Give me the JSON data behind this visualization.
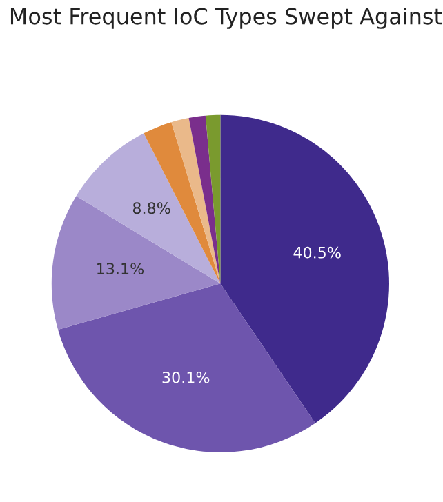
{
  "chart_data": {
    "type": "pie",
    "title": "Most Frequent IoC Types Swept Against",
    "categories": [
      null,
      null,
      null,
      null,
      null,
      null,
      null,
      null
    ],
    "values": [
      40.5,
      30.1,
      13.1,
      8.8,
      2.8,
      1.7,
      1.6,
      1.4
    ],
    "value_labels": [
      "40.5%",
      "30.1%",
      "13.1%",
      "8.8%",
      null,
      null,
      null,
      null
    ],
    "colors": [
      "#3f2a8c",
      "#6e55ad",
      "#9b88c8",
      "#b8aedb",
      "#e08a3c",
      "#eab98a",
      "#7a2e8c",
      "#7a9a2e"
    ]
  }
}
